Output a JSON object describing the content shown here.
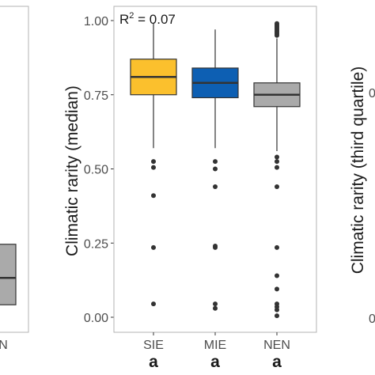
{
  "chart_data": [
    {
      "type": "box",
      "panel": "left (cropped)",
      "categories": [
        "NEN"
      ],
      "visible_category_fragment": "N",
      "boxes": [
        {
          "name": "NEN",
          "q1": 0.07,
          "median": 0.15,
          "q3": 0.25,
          "color": "#aaaaaa"
        }
      ]
    },
    {
      "type": "box",
      "panel": "center",
      "ylabel": "Climatic rarity (median)",
      "ylim": [
        0,
        1
      ],
      "yticks": [
        "0.00",
        "0.25",
        "0.50",
        "0.75",
        "1.00"
      ],
      "categories": [
        "SIE",
        "MIE",
        "NEN"
      ],
      "letters": [
        "a",
        "a",
        "a"
      ],
      "annotation": {
        "prefix": "R",
        "sup": "2",
        "suffix": " = 0.07"
      },
      "grid": false,
      "boxes": [
        {
          "name": "SIE",
          "lower_whisker": 0.57,
          "q1": 0.75,
          "median": 0.81,
          "q3": 0.87,
          "upper_whisker": 0.99,
          "color": "#fbc02d",
          "outliers": [
            0.525,
            0.505,
            0.41,
            0.235,
            0.045
          ]
        },
        {
          "name": "MIE",
          "lower_whisker": 0.57,
          "q1": 0.74,
          "median": 0.79,
          "q3": 0.84,
          "upper_whisker": 0.97,
          "color": "#0d5fb3",
          "outliers": [
            0.525,
            0.5,
            0.44,
            0.24,
            0.235,
            0.045,
            0.03
          ]
        },
        {
          "name": "NEN",
          "lower_whisker": 0.56,
          "q1": 0.71,
          "median": 0.75,
          "q3": 0.79,
          "upper_whisker": 0.94,
          "color": "#aaaaaa",
          "outliers": [
            0.99,
            0.985,
            0.98,
            0.975,
            0.97,
            0.965,
            0.96,
            0.955,
            0.95,
            0.54,
            0.525,
            0.505,
            0.44,
            0.235,
            0.14,
            0.095,
            0.045,
            0.035,
            0.025,
            0.005
          ]
        }
      ]
    },
    {
      "type": "box",
      "panel": "right (cropped)",
      "ylabel": "Climatic rarity (third quartile)",
      "visible_tick_fragments": [
        "0",
        "0"
      ]
    }
  ]
}
